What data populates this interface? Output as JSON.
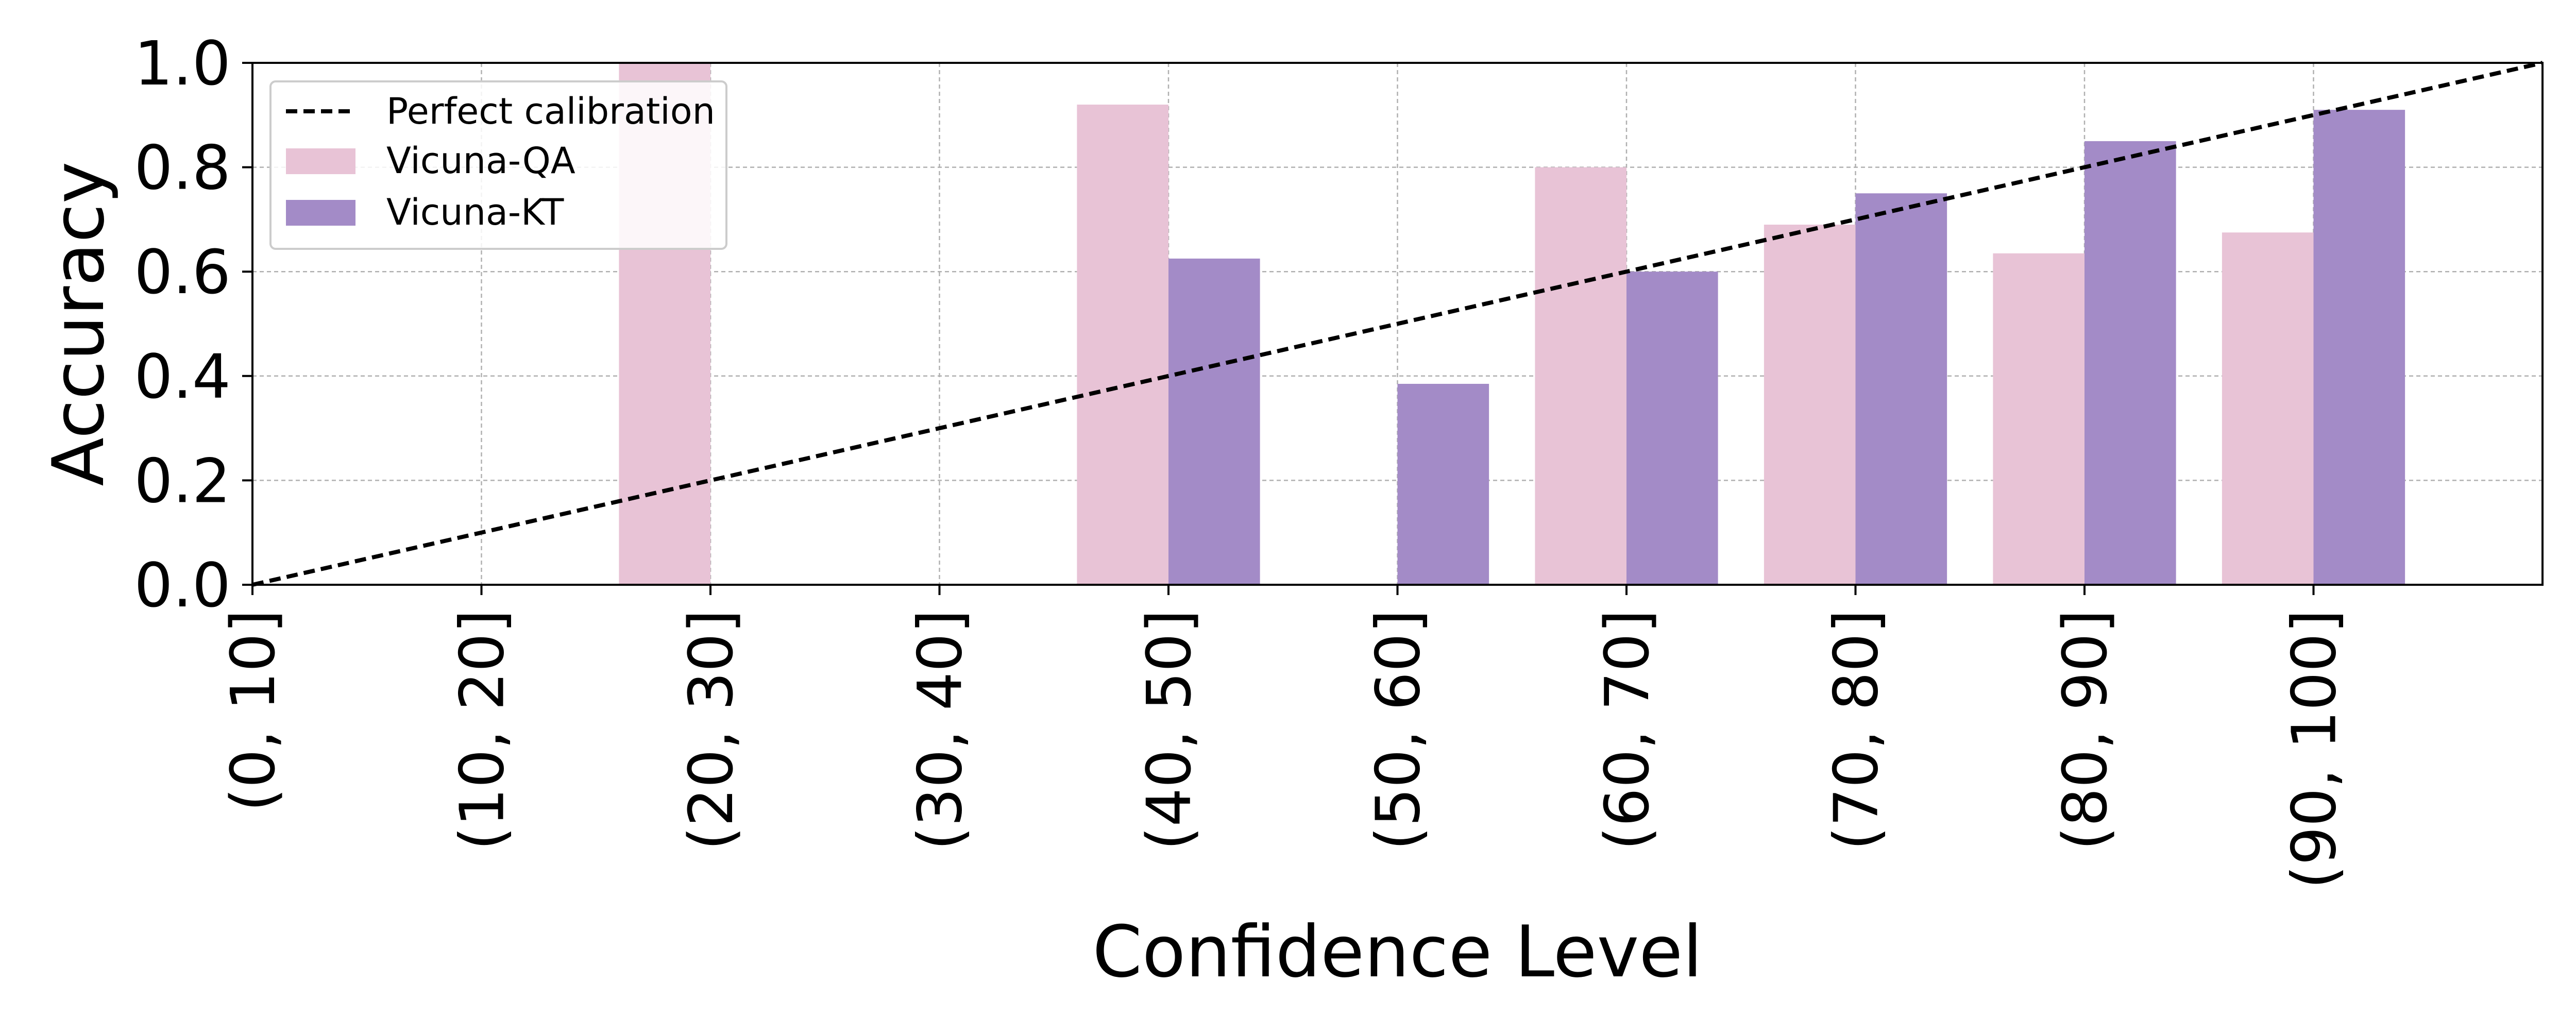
{
  "chart_data": {
    "type": "bar",
    "categories": [
      "(0, 10]",
      "(10, 20]",
      "(20, 30]",
      "(30, 40]",
      "(40, 50]",
      "(50, 60]",
      "(60, 70]",
      "(70, 80]",
      "(80, 90]",
      "(90, 100]"
    ],
    "series": [
      {
        "name": "Vicuna-QA",
        "color": "#e8c3d6",
        "values": [
          null,
          null,
          1.0,
          null,
          0.92,
          null,
          0.8,
          0.69,
          0.635,
          0.675
        ]
      },
      {
        "name": "Vicuna-KT",
        "color": "#a38bc7",
        "values": [
          null,
          null,
          null,
          null,
          0.625,
          0.385,
          0.6,
          0.75,
          0.85,
          0.91
        ]
      }
    ],
    "reference_line": {
      "name": "Perfect calibration",
      "style": "dashed",
      "color": "#000000",
      "points": [
        [
          0,
          0.0
        ],
        [
          10,
          1.0
        ]
      ]
    },
    "xlabel": "Confidence Level",
    "ylabel": "Accuracy",
    "ylim": [
      0,
      1.0
    ],
    "yticks": [
      "0.0",
      "0.2",
      "0.4",
      "0.6",
      "0.8",
      "1.0"
    ],
    "grid": true,
    "legend": "top-left"
  }
}
